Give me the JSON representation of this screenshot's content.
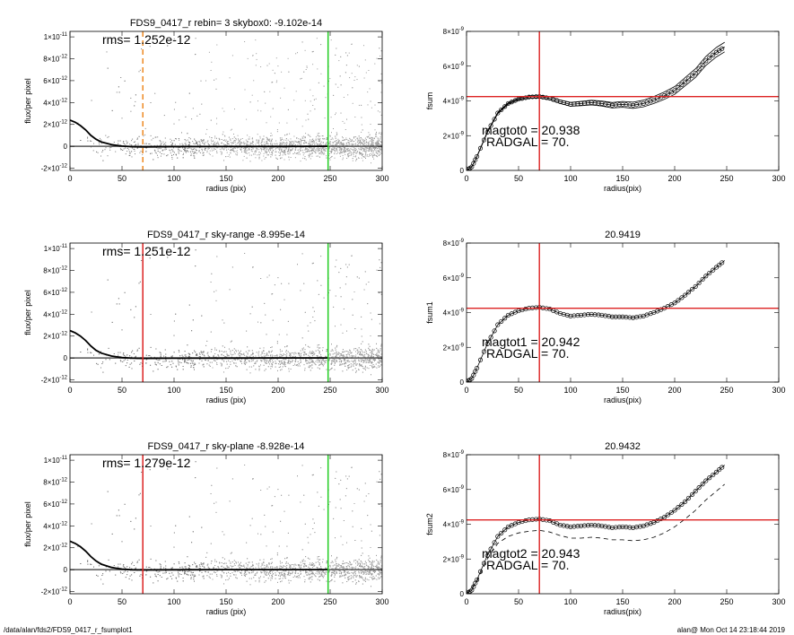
{
  "footer": {
    "path": "/data/alan/fds2/FDS9_0417_r_fsumplot1",
    "stamp": "alan@  Mon Oct 14 23:18:44 2019"
  },
  "chart_data": [
    {
      "type": "scatter",
      "title": "FDS9_0417_r rebin= 3    skybox0: -9.102e-14",
      "annotation": "rms= 1.252e-12",
      "xlabel": "radius (pix)",
      "ylabel": "flux/per pixel",
      "xlim": [
        0,
        300
      ],
      "ylim": [
        -2.2e-12,
        1.05e-11
      ],
      "xticks": [
        0,
        50,
        100,
        150,
        200,
        250,
        300
      ],
      "yticks": [
        "-2×10-12",
        "0",
        "2×10-12",
        "4×10-12",
        "6×10-12",
        "8×10-12",
        "1×10-11"
      ],
      "vlines": [
        {
          "x": 70,
          "color": "#ee8822",
          "style": "dashed"
        },
        {
          "x": 248,
          "color": "#22cc22",
          "style": "solid"
        }
      ],
      "profile": {
        "x": [
          0,
          5,
          10,
          15,
          20,
          25,
          30,
          40,
          50,
          60,
          70,
          100,
          150,
          200,
          248
        ],
        "y": [
          2.4e-12,
          2.2e-12,
          1.9e-12,
          1.5e-12,
          1e-12,
          6.5e-13,
          4e-13,
          1.5e-13,
          2e-14,
          -4e-14,
          -6e-14,
          -3e-14,
          -2e-14,
          -1e-14,
          0
        ]
      }
    },
    {
      "type": "line",
      "title": "",
      "xlabel": "radius(pix)",
      "ylabel": "fsum",
      "xlim": [
        0,
        300
      ],
      "ylim": [
        0,
        8e-09
      ],
      "xticks": [
        0,
        50,
        100,
        150,
        200,
        250,
        300
      ],
      "yticks": [
        "0",
        "2×10-9",
        "4×10-9",
        "6×10-9",
        "8×10-9"
      ],
      "annotation_lines": [
        "magtot0 =  20.938",
        "RADGAL =     70."
      ],
      "vline": {
        "x": 70,
        "color": "#dd2222"
      },
      "hline": {
        "y": 4.25e-09,
        "color": "#dd2222"
      },
      "x": [
        0,
        5,
        10,
        20,
        30,
        40,
        50,
        60,
        70,
        80,
        90,
        100,
        110,
        120,
        130,
        140,
        150,
        160,
        170,
        180,
        190,
        200,
        210,
        220,
        230,
        240,
        248
      ],
      "y": [
        0,
        2e-10,
        8e-10,
        2.2e-09,
        3.3e-09,
        3.85e-09,
        4.1e-09,
        4.22e-09,
        4.25e-09,
        4.15e-09,
        3.95e-09,
        3.8e-09,
        3.85e-09,
        3.9e-09,
        3.85e-09,
        3.75e-09,
        3.8e-09,
        3.75e-09,
        3.85e-09,
        4.05e-09,
        4.3e-09,
        4.6e-09,
        5.1e-09,
        5.6e-09,
        6.3e-09,
        6.8e-09,
        7.1e-09
      ],
      "envelope_spread": 2.8e-10
    },
    {
      "type": "scatter",
      "title": "FDS9_0417_r sky-range -8.995e-14",
      "annotation": "rms= 1.251e-12",
      "xlabel": "radius (pix)",
      "ylabel": "flux/per pixel",
      "xlim": [
        0,
        300
      ],
      "ylim": [
        -2.2e-12,
        1.05e-11
      ],
      "xticks": [
        0,
        50,
        100,
        150,
        200,
        250,
        300
      ],
      "yticks": [
        "-2×10-12",
        "0",
        "2×10-12",
        "4×10-12",
        "6×10-12",
        "8×10-12",
        "1×10-11"
      ],
      "vlines": [
        {
          "x": 70,
          "color": "#dd2222",
          "style": "solid"
        },
        {
          "x": 248,
          "color": "#22cc22",
          "style": "solid"
        }
      ],
      "profile": {
        "x": [
          0,
          5,
          10,
          15,
          20,
          25,
          30,
          40,
          50,
          60,
          70,
          100,
          150,
          200,
          248
        ],
        "y": [
          2.5e-12,
          2.3e-12,
          2e-12,
          1.6e-12,
          1.1e-12,
          7e-13,
          4.5e-13,
          1.8e-13,
          4e-14,
          -2e-14,
          -4e-14,
          -2e-14,
          -1e-14,
          0,
          0
        ]
      }
    },
    {
      "type": "line",
      "title": "20.9419",
      "xlabel": "radius(pix)",
      "ylabel": "fsum1",
      "xlim": [
        0,
        300
      ],
      "ylim": [
        0,
        8e-09
      ],
      "xticks": [
        0,
        50,
        100,
        150,
        200,
        250,
        300
      ],
      "yticks": [
        "0",
        "2×10-9",
        "4×10-9",
        "6×10-9",
        "8×10-9"
      ],
      "annotation_lines": [
        "magtot1 =  20.942",
        "RADGAL =     70."
      ],
      "vline": {
        "x": 70,
        "color": "#dd2222"
      },
      "hline": {
        "y": 4.25e-09,
        "color": "#dd2222"
      },
      "x": [
        0,
        5,
        10,
        20,
        30,
        40,
        50,
        60,
        70,
        80,
        90,
        100,
        110,
        120,
        130,
        140,
        150,
        160,
        170,
        180,
        190,
        200,
        210,
        220,
        230,
        240,
        248
      ],
      "y": [
        0,
        2e-10,
        8e-10,
        2.2e-09,
        3.3e-09,
        3.85e-09,
        4.1e-09,
        4.25e-09,
        4.3e-09,
        4.2e-09,
        3.95e-09,
        3.8e-09,
        3.85e-09,
        3.9e-09,
        3.85e-09,
        3.75e-09,
        3.75e-09,
        3.7e-09,
        3.8e-09,
        4e-09,
        4.25e-09,
        4.55e-09,
        5e-09,
        5.5e-09,
        6.1e-09,
        6.6e-09,
        7e-09
      ]
    },
    {
      "type": "scatter",
      "title": "FDS9_0417_r sky-plane -8.928e-14",
      "annotation": "rms= 1.279e-12",
      "xlabel": "radius (pix)",
      "ylabel": "flux/per pixel",
      "xlim": [
        0,
        300
      ],
      "ylim": [
        -2.2e-12,
        1.05e-11
      ],
      "xticks": [
        0,
        50,
        100,
        150,
        200,
        250,
        300
      ],
      "yticks": [
        "-2×10-12",
        "0",
        "2×10-12",
        "4×10-12",
        "6×10-12",
        "8×10-12",
        "1×10-11"
      ],
      "vlines": [
        {
          "x": 70,
          "color": "#dd2222",
          "style": "solid"
        },
        {
          "x": 248,
          "color": "#22cc22",
          "style": "solid"
        }
      ],
      "profile": {
        "x": [
          0,
          5,
          10,
          15,
          20,
          25,
          30,
          40,
          50,
          60,
          70,
          100,
          150,
          200,
          248
        ],
        "y": [
          2.6e-12,
          2.4e-12,
          2.1e-12,
          1.7e-12,
          1.2e-12,
          8e-13,
          5e-13,
          2e-13,
          5e-14,
          -1e-14,
          -3e-14,
          -1e-14,
          0,
          0,
          0
        ]
      }
    },
    {
      "type": "line",
      "title": "20.9432",
      "xlabel": "radius(pix)",
      "ylabel": "fsum2",
      "xlim": [
        0,
        300
      ],
      "ylim": [
        0,
        8e-09
      ],
      "xticks": [
        0,
        50,
        100,
        150,
        200,
        250,
        300
      ],
      "yticks": [
        "0",
        "2×10-9",
        "4×10-9",
        "6×10-9",
        "8×10-9"
      ],
      "annotation_lines": [
        "magtot2 =  20.943",
        "RADGAL =     70."
      ],
      "vline": {
        "x": 70,
        "color": "#dd2222"
      },
      "hline": {
        "y": 4.25e-09,
        "color": "#dd2222"
      },
      "x": [
        0,
        5,
        10,
        20,
        30,
        40,
        50,
        60,
        70,
        80,
        90,
        100,
        110,
        120,
        130,
        140,
        150,
        160,
        170,
        180,
        190,
        200,
        210,
        220,
        230,
        240,
        248
      ],
      "y": [
        0,
        2e-10,
        8e-10,
        2.2e-09,
        3.3e-09,
        3.85e-09,
        4.1e-09,
        4.25e-09,
        4.3e-09,
        4.2e-09,
        3.95e-09,
        3.85e-09,
        3.9e-09,
        3.95e-09,
        3.9e-09,
        3.8e-09,
        3.85e-09,
        3.8e-09,
        3.9e-09,
        4.1e-09,
        4.4e-09,
        4.8e-09,
        5.3e-09,
        5.9e-09,
        6.5e-09,
        7e-09,
        7.4e-09
      ],
      "dashed": {
        "x": [
          0,
          10,
          20,
          30,
          40,
          50,
          60,
          70,
          80,
          90,
          100,
          110,
          120,
          130,
          140,
          150,
          160,
          170,
          180,
          190,
          200,
          210,
          220,
          230,
          240,
          248
        ],
        "y": [
          0,
          7e-10,
          2e-09,
          2.9e-09,
          3.3e-09,
          3.5e-09,
          3.6e-09,
          3.65e-09,
          3.55e-09,
          3.35e-09,
          3.2e-09,
          3.2e-09,
          3.25e-09,
          3.2e-09,
          3.1e-09,
          3.1e-09,
          3.05e-09,
          3.1e-09,
          3.25e-09,
          3.5e-09,
          3.85e-09,
          4.3e-09,
          4.8e-09,
          5.4e-09,
          5.9e-09,
          6.3e-09
        ]
      }
    }
  ]
}
